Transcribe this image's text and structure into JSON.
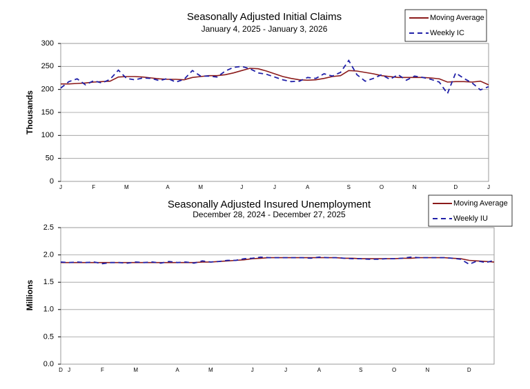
{
  "chart_data": [
    {
      "type": "line",
      "title": "Seasonally Adjusted Initial Claims",
      "subtitle": "January 4, 2025 - January 3, 2026",
      "y_label": "Thousands",
      "categories": [
        "J",
        null,
        null,
        null,
        "F",
        null,
        null,
        null,
        "M",
        null,
        null,
        null,
        null,
        "A",
        null,
        null,
        null,
        "M",
        null,
        null,
        null,
        null,
        "J",
        null,
        null,
        null,
        "J",
        null,
        null,
        null,
        "A",
        null,
        null,
        null,
        null,
        "S",
        null,
        null,
        null,
        "O",
        null,
        null,
        null,
        "N",
        null,
        null,
        null,
        null,
        "D",
        null,
        null,
        null,
        "J"
      ],
      "series": [
        {
          "name": "Moving Average",
          "color": "#8b1a1a",
          "dash": false,
          "values": [
            212,
            212,
            213,
            214,
            216,
            217,
            218,
            227,
            228,
            228,
            227,
            225,
            223,
            222,
            222,
            221,
            226,
            228,
            230,
            230,
            232,
            236,
            241,
            246,
            245,
            240,
            234,
            228,
            224,
            221,
            220,
            221,
            224,
            228,
            230,
            241,
            240,
            237,
            234,
            230,
            228,
            226,
            226,
            226,
            226,
            225,
            223,
            216,
            217,
            217,
            216,
            218,
            210
          ]
        },
        {
          "name": "Weekly IC",
          "color": "#1f1fa8",
          "dash": true,
          "values": [
            203,
            217,
            223,
            210,
            219,
            214,
            222,
            242,
            224,
            221,
            225,
            224,
            219,
            224,
            216,
            222,
            241,
            229,
            229,
            227,
            240,
            248,
            250,
            245,
            236,
            233,
            227,
            221,
            217,
            218,
            226,
            224,
            234,
            229,
            237,
            263,
            232,
            218,
            224,
            232,
            222,
            232,
            220,
            229,
            226,
            222,
            216,
            191,
            236,
            224,
            214,
            199,
            206
          ]
        }
      ],
      "ylim": [
        0,
        300
      ],
      "yticks": [
        0,
        50,
        100,
        150,
        200,
        250,
        300
      ],
      "grid": true,
      "legend": "upper right"
    },
    {
      "type": "line",
      "title": "Seasonally Adjusted Insured Unemployment",
      "subtitle": "December 28, 2024 - December 27, 2025",
      "y_label": "Millions",
      "categories": [
        "D",
        "J",
        null,
        null,
        null,
        "F",
        null,
        null,
        null,
        "M",
        null,
        null,
        null,
        null,
        "A",
        null,
        null,
        null,
        "M",
        null,
        null,
        null,
        null,
        "J",
        null,
        null,
        null,
        "J",
        null,
        null,
        null,
        "A",
        null,
        null,
        null,
        null,
        "S",
        null,
        null,
        null,
        "O",
        null,
        null,
        null,
        "N",
        null,
        null,
        null,
        null,
        "D",
        null,
        null,
        null
      ],
      "series": [
        {
          "name": "Moving Average",
          "color": "#8b1a1a",
          "dash": false,
          "values": [
            1.86,
            1.86,
            1.86,
            1.86,
            1.86,
            1.86,
            1.86,
            1.86,
            1.86,
            1.86,
            1.86,
            1.86,
            1.86,
            1.86,
            1.86,
            1.86,
            1.86,
            1.87,
            1.87,
            1.88,
            1.89,
            1.9,
            1.91,
            1.93,
            1.94,
            1.95,
            1.95,
            1.95,
            1.95,
            1.95,
            1.95,
            1.95,
            1.95,
            1.95,
            1.94,
            1.94,
            1.93,
            1.93,
            1.93,
            1.93,
            1.93,
            1.94,
            1.94,
            1.95,
            1.95,
            1.95,
            1.95,
            1.94,
            1.93,
            1.9,
            1.89,
            1.88,
            1.87
          ]
        },
        {
          "name": "Weekly IU",
          "color": "#1f1fa8",
          "dash": true,
          "values": [
            1.87,
            1.86,
            1.87,
            1.86,
            1.87,
            1.84,
            1.86,
            1.86,
            1.85,
            1.87,
            1.86,
            1.87,
            1.85,
            1.88,
            1.86,
            1.87,
            1.85,
            1.89,
            1.87,
            1.88,
            1.9,
            1.9,
            1.93,
            1.94,
            1.96,
            1.95,
            1.95,
            1.95,
            1.95,
            1.95,
            1.94,
            1.96,
            1.95,
            1.95,
            1.94,
            1.93,
            1.93,
            1.92,
            1.92,
            1.93,
            1.93,
            1.94,
            1.96,
            1.95,
            1.95,
            1.95,
            1.95,
            1.94,
            1.92,
            1.83,
            1.89,
            1.86,
            1.9
          ]
        }
      ],
      "ylim": [
        0,
        2.5
      ],
      "yticks": [
        {
          "value": 0,
          "label": "0.0"
        },
        0.5,
        {
          "value": 1,
          "label": "1.0"
        },
        1.5,
        {
          "value": 2,
          "label": "2.0"
        },
        2.5
      ],
      "grid": true,
      "legend": "upper right"
    }
  ]
}
